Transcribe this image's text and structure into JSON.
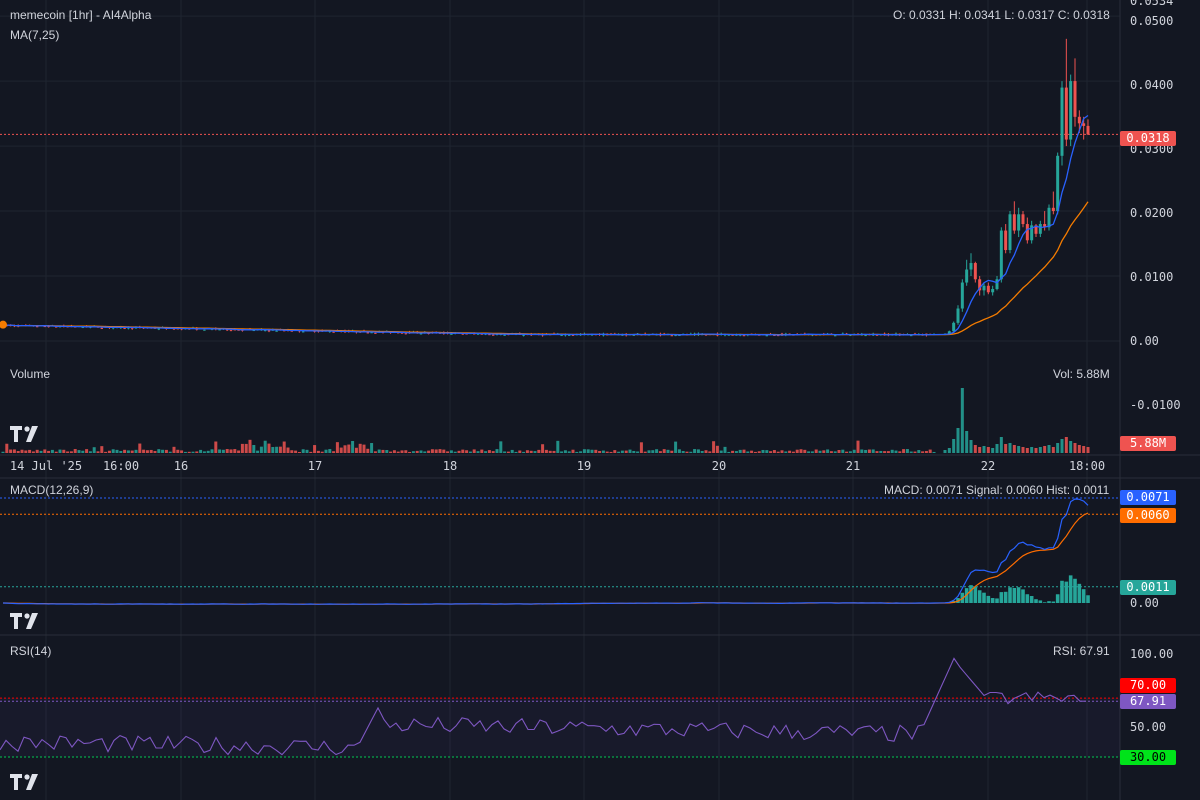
{
  "colors": {
    "bg": "#131722",
    "grid": "#1f2430",
    "up": "#26a69a",
    "down": "#ef5350",
    "ma7": "#2962ff",
    "ma25": "#f57c00",
    "macd": "#2962ff",
    "signal": "#ff6d00",
    "rsi": "#7e57c2",
    "rsi_upper": "#ff0000",
    "rsi_lower": "#00c853",
    "text": "#d1d4dc"
  },
  "header": {
    "title": "memecoin [1hr] - AI4Alpha",
    "ma_label": "MA(7,25)",
    "ohlc": "O: 0.0331 H: 0.0341 L: 0.0317 C: 0.0318"
  },
  "volume_panel": {
    "title": "Volume",
    "readout": "Vol: 5.88M",
    "tag": "5.88M"
  },
  "macd_panel": {
    "title": "MACD(12,26,9)",
    "readout": "MACD: 0.0071 Signal: 0.0060 Hist: 0.0011",
    "tags": {
      "macd": "0.0071",
      "signal": "0.0060",
      "hist": "0.0011"
    }
  },
  "rsi_panel": {
    "title": "RSI(14)",
    "readout": "RSI: 67.91",
    "tags": {
      "upper": "70.00",
      "value": "67.91",
      "lower": "30.00"
    }
  },
  "price_tag": "0.0318",
  "chart_data": [
    {
      "type": "candlestick",
      "title": "memecoin [1hr] - AI4Alpha",
      "x_ticks": [
        "14 Jul '25",
        "16:00",
        "16",
        "17",
        "18",
        "19",
        "20",
        "21",
        "22",
        "18:00"
      ],
      "y_ticks": [
        "0.0534",
        "0.0500",
        "0.0400",
        "0.0300",
        "0.0200",
        "0.0100",
        "0.00",
        "-0.0100"
      ],
      "ylim": [
        -0.01,
        0.0534
      ],
      "last_close": 0.0318,
      "baseline_price": 0.001,
      "breakout_candles": [
        {
          "o": 0.001,
          "h": 0.0012,
          "l": 0.0009,
          "c": 0.0011
        },
        {
          "o": 0.0011,
          "h": 0.0016,
          "l": 0.001,
          "c": 0.0015
        },
        {
          "o": 0.0015,
          "h": 0.003,
          "l": 0.0014,
          "c": 0.0028
        },
        {
          "o": 0.0028,
          "h": 0.0055,
          "l": 0.0025,
          "c": 0.005
        },
        {
          "o": 0.005,
          "h": 0.0095,
          "l": 0.0045,
          "c": 0.009
        },
        {
          "o": 0.009,
          "h": 0.0125,
          "l": 0.0085,
          "c": 0.011
        },
        {
          "o": 0.011,
          "h": 0.0135,
          "l": 0.01,
          "c": 0.012
        },
        {
          "o": 0.012,
          "h": 0.0122,
          "l": 0.009,
          "c": 0.0095
        },
        {
          "o": 0.0095,
          "h": 0.01,
          "l": 0.007,
          "c": 0.0078
        },
        {
          "o": 0.0078,
          "h": 0.009,
          "l": 0.007,
          "c": 0.0085
        },
        {
          "o": 0.0085,
          "h": 0.009,
          "l": 0.0072,
          "c": 0.0075
        },
        {
          "o": 0.0075,
          "h": 0.0085,
          "l": 0.007,
          "c": 0.008
        },
        {
          "o": 0.008,
          "h": 0.01,
          "l": 0.0078,
          "c": 0.0095
        },
        {
          "o": 0.0095,
          "h": 0.0175,
          "l": 0.009,
          "c": 0.017
        },
        {
          "o": 0.017,
          "h": 0.018,
          "l": 0.0135,
          "c": 0.014
        },
        {
          "o": 0.014,
          "h": 0.02,
          "l": 0.0135,
          "c": 0.0195
        },
        {
          "o": 0.0195,
          "h": 0.0215,
          "l": 0.0165,
          "c": 0.017
        },
        {
          "o": 0.017,
          "h": 0.0205,
          "l": 0.016,
          "c": 0.0195
        },
        {
          "o": 0.0195,
          "h": 0.02,
          "l": 0.0175,
          "c": 0.018
        },
        {
          "o": 0.018,
          "h": 0.019,
          "l": 0.015,
          "c": 0.0155
        },
        {
          "o": 0.0155,
          "h": 0.0185,
          "l": 0.015,
          "c": 0.0178
        },
        {
          "o": 0.0178,
          "h": 0.018,
          "l": 0.016,
          "c": 0.0165
        },
        {
          "o": 0.0165,
          "h": 0.0185,
          "l": 0.016,
          "c": 0.018
        },
        {
          "o": 0.018,
          "h": 0.02,
          "l": 0.017,
          "c": 0.0175
        },
        {
          "o": 0.0175,
          "h": 0.021,
          "l": 0.017,
          "c": 0.0205
        },
        {
          "o": 0.0205,
          "h": 0.023,
          "l": 0.0195,
          "c": 0.02
        },
        {
          "o": 0.02,
          "h": 0.029,
          "l": 0.0195,
          "c": 0.0285
        },
        {
          "o": 0.0285,
          "h": 0.04,
          "l": 0.027,
          "c": 0.039
        },
        {
          "o": 0.039,
          "h": 0.0465,
          "l": 0.03,
          "c": 0.031
        },
        {
          "o": 0.031,
          "h": 0.041,
          "l": 0.03,
          "c": 0.04
        },
        {
          "o": 0.04,
          "h": 0.0435,
          "l": 0.033,
          "c": 0.0345
        },
        {
          "o": 0.0345,
          "h": 0.0355,
          "l": 0.032,
          "c": 0.0335
        },
        {
          "o": 0.0335,
          "h": 0.0345,
          "l": 0.031,
          "c": 0.0331
        },
        {
          "o": 0.0331,
          "h": 0.0341,
          "l": 0.0317,
          "c": 0.0318
        }
      ]
    },
    {
      "type": "bar",
      "title": "Volume",
      "last_value": "5.88M",
      "breakout_volumes_rel": [
        0.3,
        0.5,
        1.4,
        2.5,
        6.5,
        2.2,
        1.3,
        0.8,
        0.6,
        0.7,
        0.6,
        0.5,
        0.9,
        1.6,
        0.9,
        1.0,
        0.8,
        0.7,
        0.6,
        0.5,
        0.6,
        0.5,
        0.6,
        0.7,
        0.8,
        0.6,
        1.0,
        1.4,
        1.6,
        1.2,
        1.0,
        0.8,
        0.7,
        0.6
      ]
    },
    {
      "type": "line",
      "title": "MACD(12,26,9)",
      "series": [
        {
          "name": "MACD",
          "last": 0.0071
        },
        {
          "name": "Signal",
          "last": 0.006
        },
        {
          "name": "Hist",
          "last": 0.0011
        }
      ],
      "y_ticks": [
        "0.0071",
        "0.0060",
        "0.0011",
        "0.00"
      ]
    },
    {
      "type": "line",
      "title": "RSI(14)",
      "last": 67.91,
      "upper": 70,
      "lower": 30,
      "y_ticks": [
        "100.00",
        "70.00",
        "67.91",
        "50.00",
        "30.00"
      ]
    }
  ]
}
